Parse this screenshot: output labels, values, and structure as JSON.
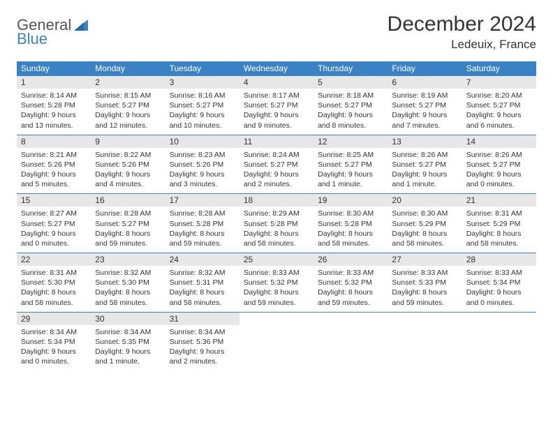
{
  "logo": {
    "word1": "General",
    "word2": "Blue"
  },
  "title": "December 2024",
  "location": "Ledeuix, France",
  "header_color": "#3b82c4",
  "daynum_bg": "#e7e7e7",
  "days_of_week": [
    "Sunday",
    "Monday",
    "Tuesday",
    "Wednesday",
    "Thursday",
    "Friday",
    "Saturday"
  ],
  "weeks": [
    [
      {
        "n": "1",
        "sr": "Sunrise: 8:14 AM",
        "ss": "Sunset: 5:28 PM",
        "dl": "Daylight: 9 hours and 13 minutes."
      },
      {
        "n": "2",
        "sr": "Sunrise: 8:15 AM",
        "ss": "Sunset: 5:27 PM",
        "dl": "Daylight: 9 hours and 12 minutes."
      },
      {
        "n": "3",
        "sr": "Sunrise: 8:16 AM",
        "ss": "Sunset: 5:27 PM",
        "dl": "Daylight: 9 hours and 10 minutes."
      },
      {
        "n": "4",
        "sr": "Sunrise: 8:17 AM",
        "ss": "Sunset: 5:27 PM",
        "dl": "Daylight: 9 hours and 9 minutes."
      },
      {
        "n": "5",
        "sr": "Sunrise: 8:18 AM",
        "ss": "Sunset: 5:27 PM",
        "dl": "Daylight: 9 hours and 8 minutes."
      },
      {
        "n": "6",
        "sr": "Sunrise: 8:19 AM",
        "ss": "Sunset: 5:27 PM",
        "dl": "Daylight: 9 hours and 7 minutes."
      },
      {
        "n": "7",
        "sr": "Sunrise: 8:20 AM",
        "ss": "Sunset: 5:27 PM",
        "dl": "Daylight: 9 hours and 6 minutes."
      }
    ],
    [
      {
        "n": "8",
        "sr": "Sunrise: 8:21 AM",
        "ss": "Sunset: 5:26 PM",
        "dl": "Daylight: 9 hours and 5 minutes."
      },
      {
        "n": "9",
        "sr": "Sunrise: 8:22 AM",
        "ss": "Sunset: 5:26 PM",
        "dl": "Daylight: 9 hours and 4 minutes."
      },
      {
        "n": "10",
        "sr": "Sunrise: 8:23 AM",
        "ss": "Sunset: 5:26 PM",
        "dl": "Daylight: 9 hours and 3 minutes."
      },
      {
        "n": "11",
        "sr": "Sunrise: 8:24 AM",
        "ss": "Sunset: 5:27 PM",
        "dl": "Daylight: 9 hours and 2 minutes."
      },
      {
        "n": "12",
        "sr": "Sunrise: 8:25 AM",
        "ss": "Sunset: 5:27 PM",
        "dl": "Daylight: 9 hours and 1 minute."
      },
      {
        "n": "13",
        "sr": "Sunrise: 8:26 AM",
        "ss": "Sunset: 5:27 PM",
        "dl": "Daylight: 9 hours and 1 minute."
      },
      {
        "n": "14",
        "sr": "Sunrise: 8:26 AM",
        "ss": "Sunset: 5:27 PM",
        "dl": "Daylight: 9 hours and 0 minutes."
      }
    ],
    [
      {
        "n": "15",
        "sr": "Sunrise: 8:27 AM",
        "ss": "Sunset: 5:27 PM",
        "dl": "Daylight: 9 hours and 0 minutes."
      },
      {
        "n": "16",
        "sr": "Sunrise: 8:28 AM",
        "ss": "Sunset: 5:27 PM",
        "dl": "Daylight: 8 hours and 59 minutes."
      },
      {
        "n": "17",
        "sr": "Sunrise: 8:28 AM",
        "ss": "Sunset: 5:28 PM",
        "dl": "Daylight: 8 hours and 59 minutes."
      },
      {
        "n": "18",
        "sr": "Sunrise: 8:29 AM",
        "ss": "Sunset: 5:28 PM",
        "dl": "Daylight: 8 hours and 58 minutes."
      },
      {
        "n": "19",
        "sr": "Sunrise: 8:30 AM",
        "ss": "Sunset: 5:28 PM",
        "dl": "Daylight: 8 hours and 58 minutes."
      },
      {
        "n": "20",
        "sr": "Sunrise: 8:30 AM",
        "ss": "Sunset: 5:29 PM",
        "dl": "Daylight: 8 hours and 58 minutes."
      },
      {
        "n": "21",
        "sr": "Sunrise: 8:31 AM",
        "ss": "Sunset: 5:29 PM",
        "dl": "Daylight: 8 hours and 58 minutes."
      }
    ],
    [
      {
        "n": "22",
        "sr": "Sunrise: 8:31 AM",
        "ss": "Sunset: 5:30 PM",
        "dl": "Daylight: 8 hours and 58 minutes."
      },
      {
        "n": "23",
        "sr": "Sunrise: 8:32 AM",
        "ss": "Sunset: 5:30 PM",
        "dl": "Daylight: 8 hours and 58 minutes."
      },
      {
        "n": "24",
        "sr": "Sunrise: 8:32 AM",
        "ss": "Sunset: 5:31 PM",
        "dl": "Daylight: 8 hours and 58 minutes."
      },
      {
        "n": "25",
        "sr": "Sunrise: 8:33 AM",
        "ss": "Sunset: 5:32 PM",
        "dl": "Daylight: 8 hours and 59 minutes."
      },
      {
        "n": "26",
        "sr": "Sunrise: 8:33 AM",
        "ss": "Sunset: 5:32 PM",
        "dl": "Daylight: 8 hours and 59 minutes."
      },
      {
        "n": "27",
        "sr": "Sunrise: 8:33 AM",
        "ss": "Sunset: 5:33 PM",
        "dl": "Daylight: 8 hours and 59 minutes."
      },
      {
        "n": "28",
        "sr": "Sunrise: 8:33 AM",
        "ss": "Sunset: 5:34 PM",
        "dl": "Daylight: 9 hours and 0 minutes."
      }
    ],
    [
      {
        "n": "29",
        "sr": "Sunrise: 8:34 AM",
        "ss": "Sunset: 5:34 PM",
        "dl": "Daylight: 9 hours and 0 minutes."
      },
      {
        "n": "30",
        "sr": "Sunrise: 8:34 AM",
        "ss": "Sunset: 5:35 PM",
        "dl": "Daylight: 9 hours and 1 minute."
      },
      {
        "n": "31",
        "sr": "Sunrise: 8:34 AM",
        "ss": "Sunset: 5:36 PM",
        "dl": "Daylight: 9 hours and 2 minutes."
      },
      null,
      null,
      null,
      null
    ]
  ]
}
